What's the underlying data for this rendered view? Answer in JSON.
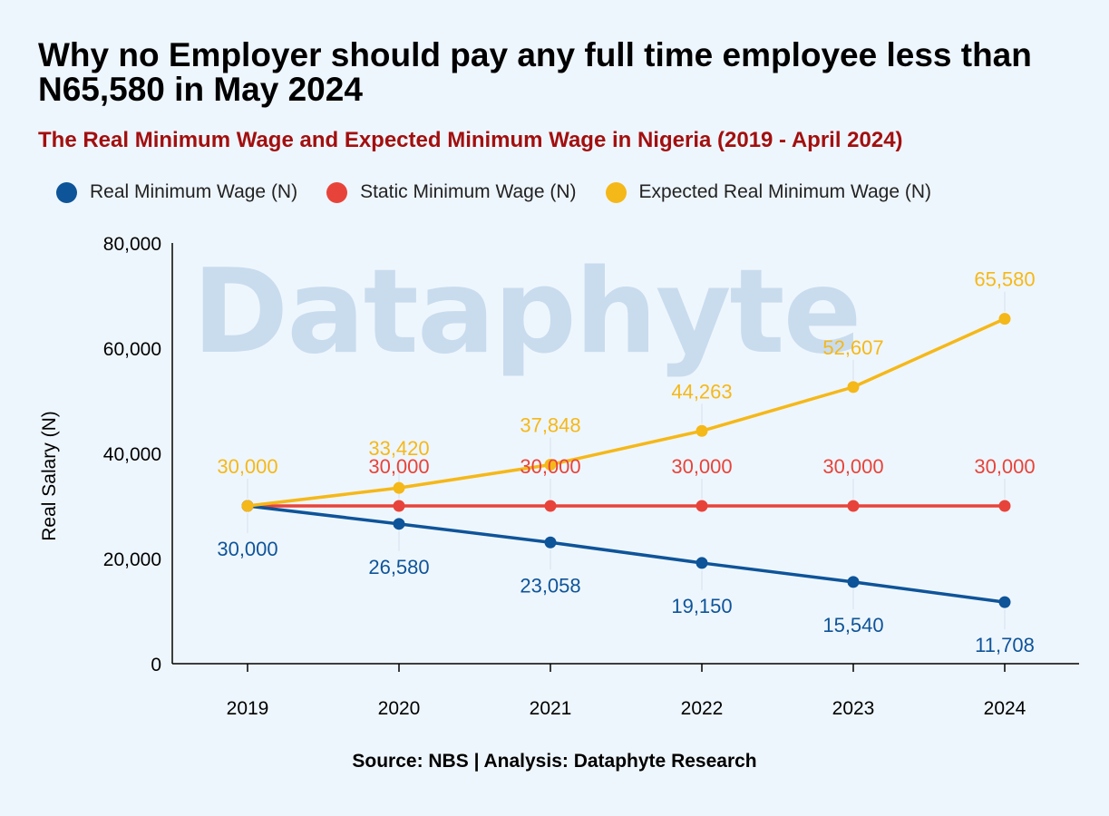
{
  "title": "Why no Employer should pay any full time employee less than N65,580 in May 2024",
  "subtitle": "The Real Minimum Wage and Expected Minimum Wage in Nigeria (2019 - April 2024)",
  "watermark": "Dataphyte",
  "source": "Source: NBS | Analysis: Dataphyte Research",
  "chart_data": {
    "type": "line",
    "x": [
      "2019",
      "2020",
      "2021",
      "2022",
      "2023",
      "2024"
    ],
    "ylabel": "Real Salary (N)",
    "xlabel": "",
    "ylim": [
      0,
      80000
    ],
    "yticks": [
      0,
      20000,
      40000,
      60000,
      80000
    ],
    "ytick_labels": [
      "0",
      "20,000",
      "40,000",
      "60,000",
      "80,000"
    ],
    "grid": false,
    "legend_position": "top",
    "series": [
      {
        "name": "Real Minimum Wage (N)",
        "color": "#0e5499",
        "values": [
          30000,
          26580,
          23058,
          19150,
          15540,
          11708
        ],
        "labels": [
          "30,000",
          "26,580",
          "23,058",
          "19,150",
          "15,540",
          "11,708"
        ],
        "label_position": "below"
      },
      {
        "name": "Static Minimum Wage (N)",
        "color": "#e8433a",
        "values": [
          30000,
          30000,
          30000,
          30000,
          30000,
          30000
        ],
        "labels": [
          "",
          "30,000",
          "30,000",
          "30,000",
          "30,000",
          "30,000"
        ],
        "label_position": "above"
      },
      {
        "name": "Expected Real Minimum Wage (N)",
        "color": "#f5b819",
        "values": [
          30000,
          33420,
          37848,
          44263,
          52607,
          65580
        ],
        "labels": [
          "30,000",
          "33,420",
          "37,848",
          "44,263",
          "52,607",
          "65,580"
        ],
        "label_position": "above"
      }
    ]
  }
}
